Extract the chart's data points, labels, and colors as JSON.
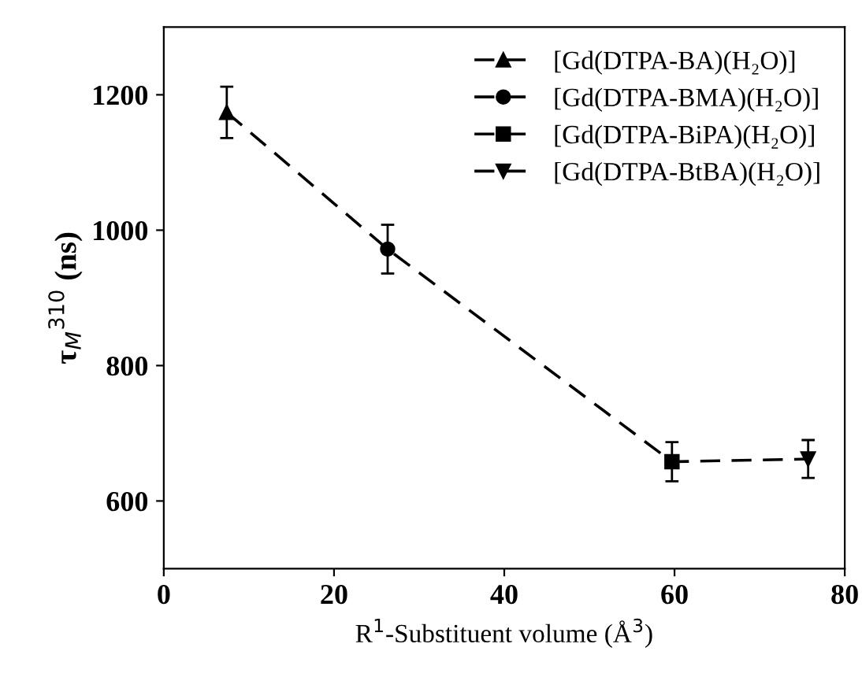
{
  "chart_data": {
    "type": "line",
    "xlabel": "R$^{1}$-Substituent volume (Å$^{3}$)",
    "ylabel": "τ$_{M}$$^{310}$ (ns)",
    "xlim": [
      0,
      80
    ],
    "xticks": [
      0,
      20,
      40,
      60,
      80
    ],
    "ylim": [
      500,
      1300
    ],
    "yticks": [
      600,
      800,
      1000,
      1200
    ],
    "grid": false,
    "legend": "top right",
    "line_style": "dashed",
    "series": [
      {
        "type": "line",
        "x": [
          7.4,
          26.3,
          59.7,
          75.7
        ],
        "values": [
          1174,
          972,
          658,
          662
        ],
        "color": "#000000",
        "marker": "none"
      },
      {
        "name": "[Gd(DTPA-BA)(H₂O)]",
        "x": [
          7.4
        ],
        "values": [
          1174
        ],
        "errors": [
          38
        ],
        "color": "#000000",
        "marker": "triangle"
      },
      {
        "name": "[Gd(DTPA-BMA)(H₂O)]",
        "x": [
          26.3
        ],
        "values": [
          972
        ],
        "errors": [
          36
        ],
        "color": "#000000",
        "marker": "circle"
      },
      {
        "name": "[Gd(DTPA-BiPA)(H₂O)]",
        "x": [
          59.7
        ],
        "values": [
          658
        ],
        "errors": [
          29
        ],
        "color": "#000000",
        "marker": "square"
      },
      {
        "name": "[Gd(DTPA-BtBA)(H₂O)]",
        "x": [
          75.7
        ],
        "values": [
          662
        ],
        "errors": [
          28
        ],
        "color": "#000000",
        "marker": "triangle_down"
      }
    ]
  }
}
